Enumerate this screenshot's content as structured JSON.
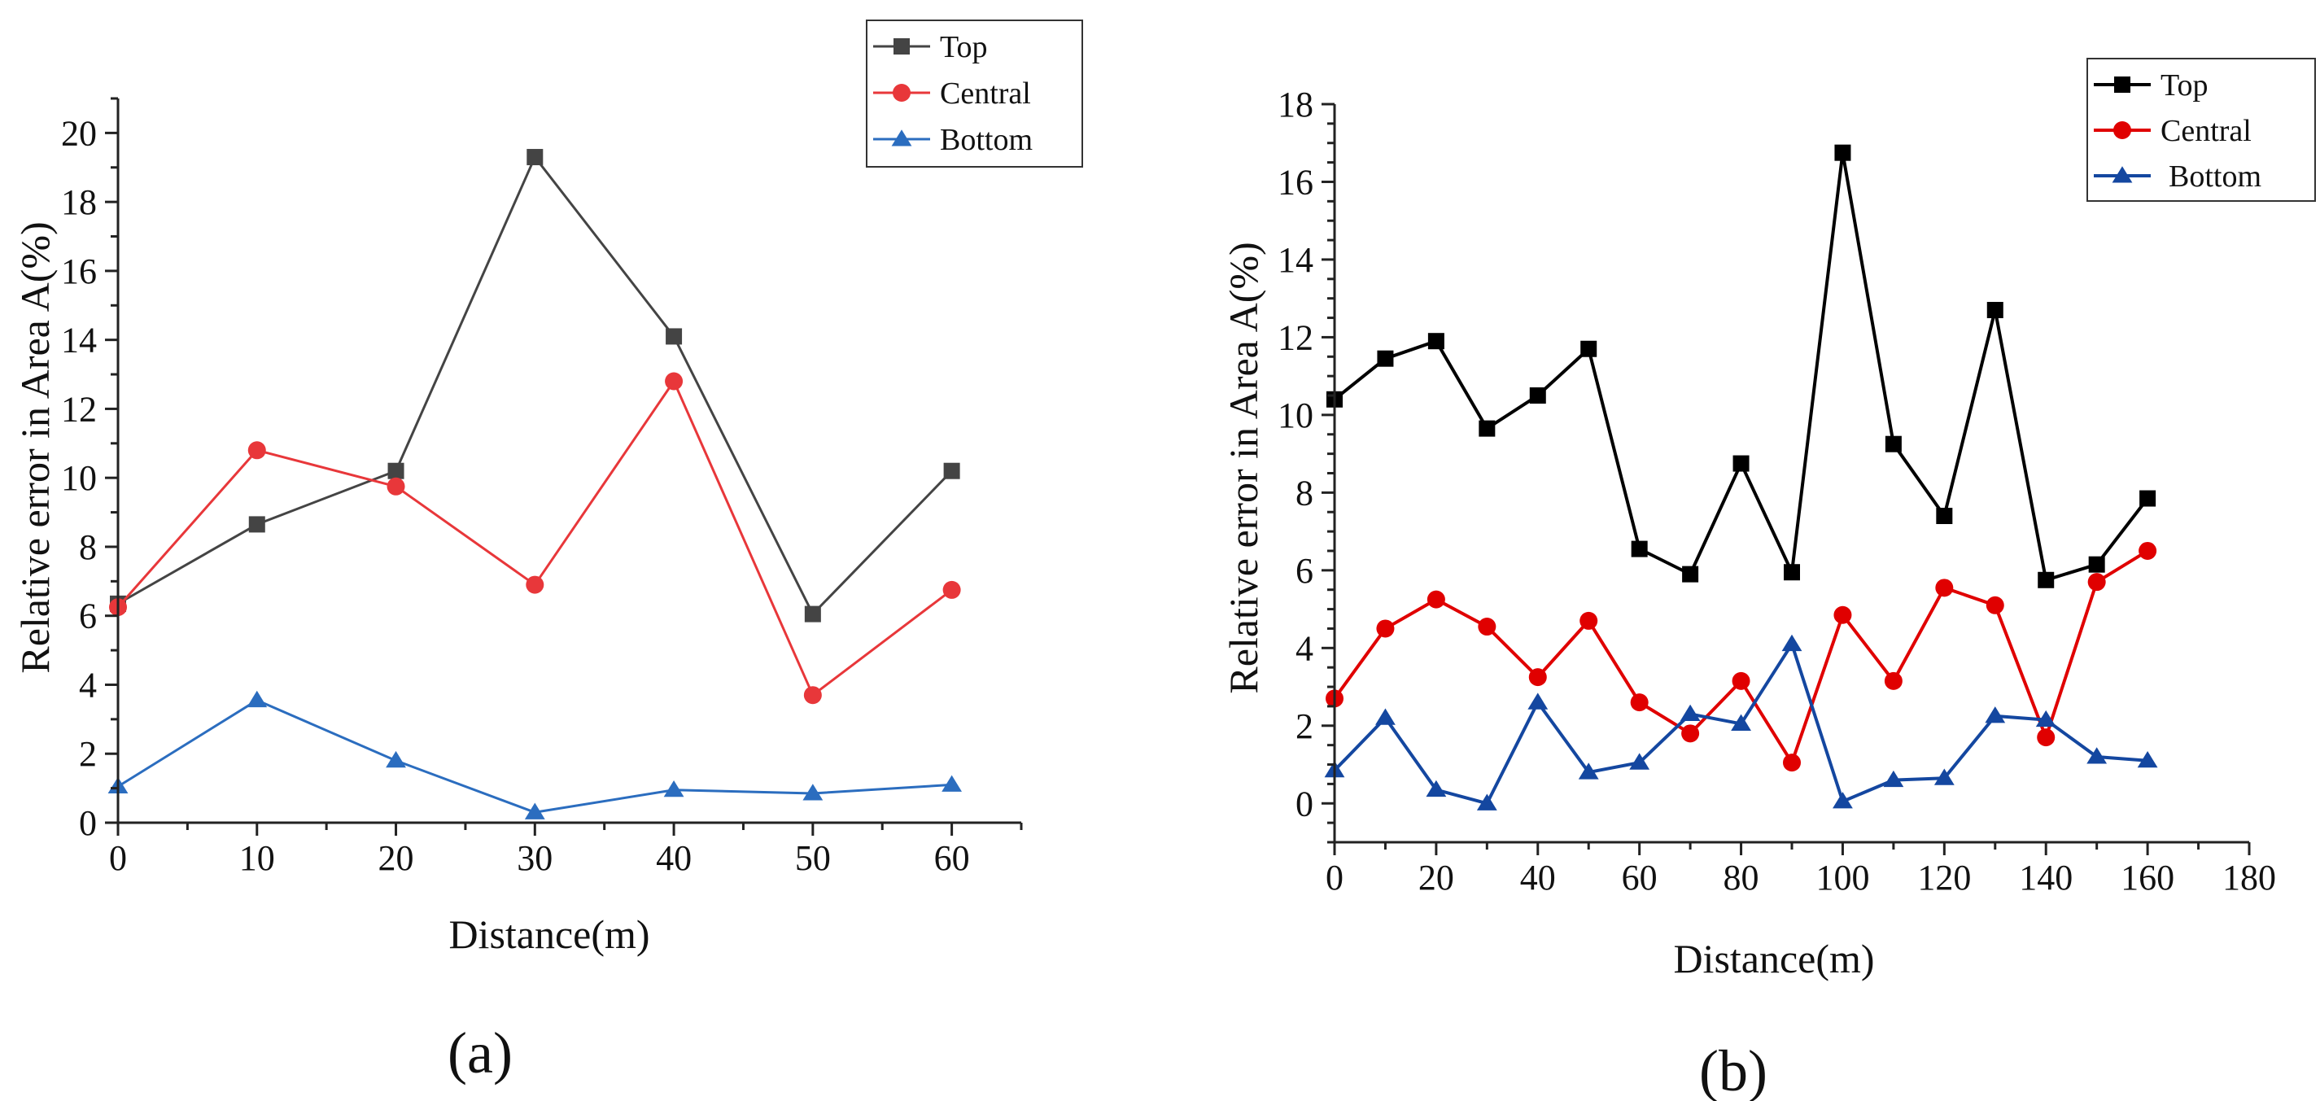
{
  "chart_data": [
    {
      "panel_label": "(a)",
      "type": "line",
      "xlabel": "Distance(m)",
      "ylabel": "Relative error in Area A(%)",
      "x": [
        0,
        10,
        20,
        30,
        40,
        50,
        60
      ],
      "xlim": [
        0,
        65
      ],
      "ylim": [
        0,
        21
      ],
      "xticks": [
        0,
        10,
        20,
        30,
        40,
        50,
        60
      ],
      "yticks": [
        0,
        2,
        4,
        6,
        8,
        10,
        12,
        14,
        16,
        18,
        20
      ],
      "grid": false,
      "legend_position": "top-right",
      "series": [
        {
          "name": "Top",
          "color": "#444444",
          "marker": "square",
          "values": [
            6.35,
            8.65,
            10.2,
            19.3,
            14.1,
            6.05,
            10.2
          ]
        },
        {
          "name": "Central",
          "color": "#e8373a",
          "marker": "circle",
          "values": [
            6.25,
            10.8,
            9.75,
            6.9,
            12.8,
            3.7,
            6.75
          ]
        },
        {
          "name": "Bottom",
          "color": "#2b6dbf",
          "marker": "triangle",
          "values": [
            1.05,
            3.55,
            1.8,
            0.3,
            0.95,
            0.85,
            1.1
          ]
        }
      ]
    },
    {
      "panel_label": "(b)",
      "type": "line",
      "xlabel": "Distance(m)",
      "ylabel": "Relative error in Area A(%)",
      "x": [
        0,
        10,
        20,
        30,
        40,
        50,
        60,
        70,
        80,
        90,
        100,
        110,
        120,
        130,
        140,
        150,
        160
      ],
      "xlim": [
        0,
        180
      ],
      "ylim": [
        -1,
        18
      ],
      "xticks": [
        0,
        20,
        40,
        60,
        80,
        100,
        120,
        140,
        160,
        180
      ],
      "yticks": [
        0,
        2,
        4,
        6,
        8,
        10,
        12,
        14,
        16,
        18
      ],
      "grid": false,
      "legend_position": "top-right",
      "series": [
        {
          "name": "Top",
          "color": "#000000",
          "marker": "square",
          "values": [
            10.4,
            11.45,
            11.9,
            9.65,
            10.5,
            11.7,
            6.55,
            5.9,
            8.75,
            5.95,
            16.75,
            9.25,
            7.4,
            12.7,
            5.75,
            6.15,
            7.85
          ]
        },
        {
          "name": "Central",
          "color": "#e00000",
          "marker": "circle",
          "values": [
            2.7,
            4.5,
            5.25,
            4.55,
            3.25,
            4.7,
            2.6,
            1.8,
            3.15,
            1.05,
            4.85,
            3.15,
            5.55,
            5.1,
            1.7,
            5.7,
            6.5
          ]
        },
        {
          "name": "Bottom",
          "color": "#1447a0",
          "marker": "triangle",
          "values": [
            0.85,
            2.2,
            0.35,
            0.0,
            2.6,
            0.8,
            1.05,
            2.3,
            2.05,
            4.1,
            0.05,
            0.6,
            0.65,
            2.25,
            2.15,
            1.2,
            1.1
          ]
        }
      ]
    }
  ]
}
